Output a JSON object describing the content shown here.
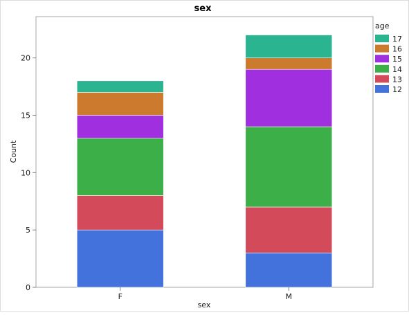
{
  "chart_data": {
    "type": "bar",
    "stacked": true,
    "title": "sex",
    "xlabel": "sex",
    "ylabel": "Count",
    "categories": [
      "F",
      "M"
    ],
    "ylim": [
      0,
      23.6
    ],
    "yticks": [
      0,
      5,
      10,
      15,
      20
    ],
    "legend": {
      "title": "age",
      "position": "right",
      "order": [
        "17",
        "16",
        "15",
        "14",
        "13",
        "12"
      ]
    },
    "series": [
      {
        "name": "12",
        "color": "#4472DC",
        "values": [
          5,
          3
        ]
      },
      {
        "name": "13",
        "color": "#D34A5A",
        "values": [
          3,
          4
        ]
      },
      {
        "name": "14",
        "color": "#3CAF48",
        "values": [
          5,
          7
        ]
      },
      {
        "name": "15",
        "color": "#A02FDF",
        "values": [
          2,
          5
        ]
      },
      {
        "name": "16",
        "color": "#CC7A2E",
        "values": [
          2,
          1
        ]
      },
      {
        "name": "17",
        "color": "#2BB490",
        "values": [
          1,
          2
        ]
      }
    ]
  }
}
